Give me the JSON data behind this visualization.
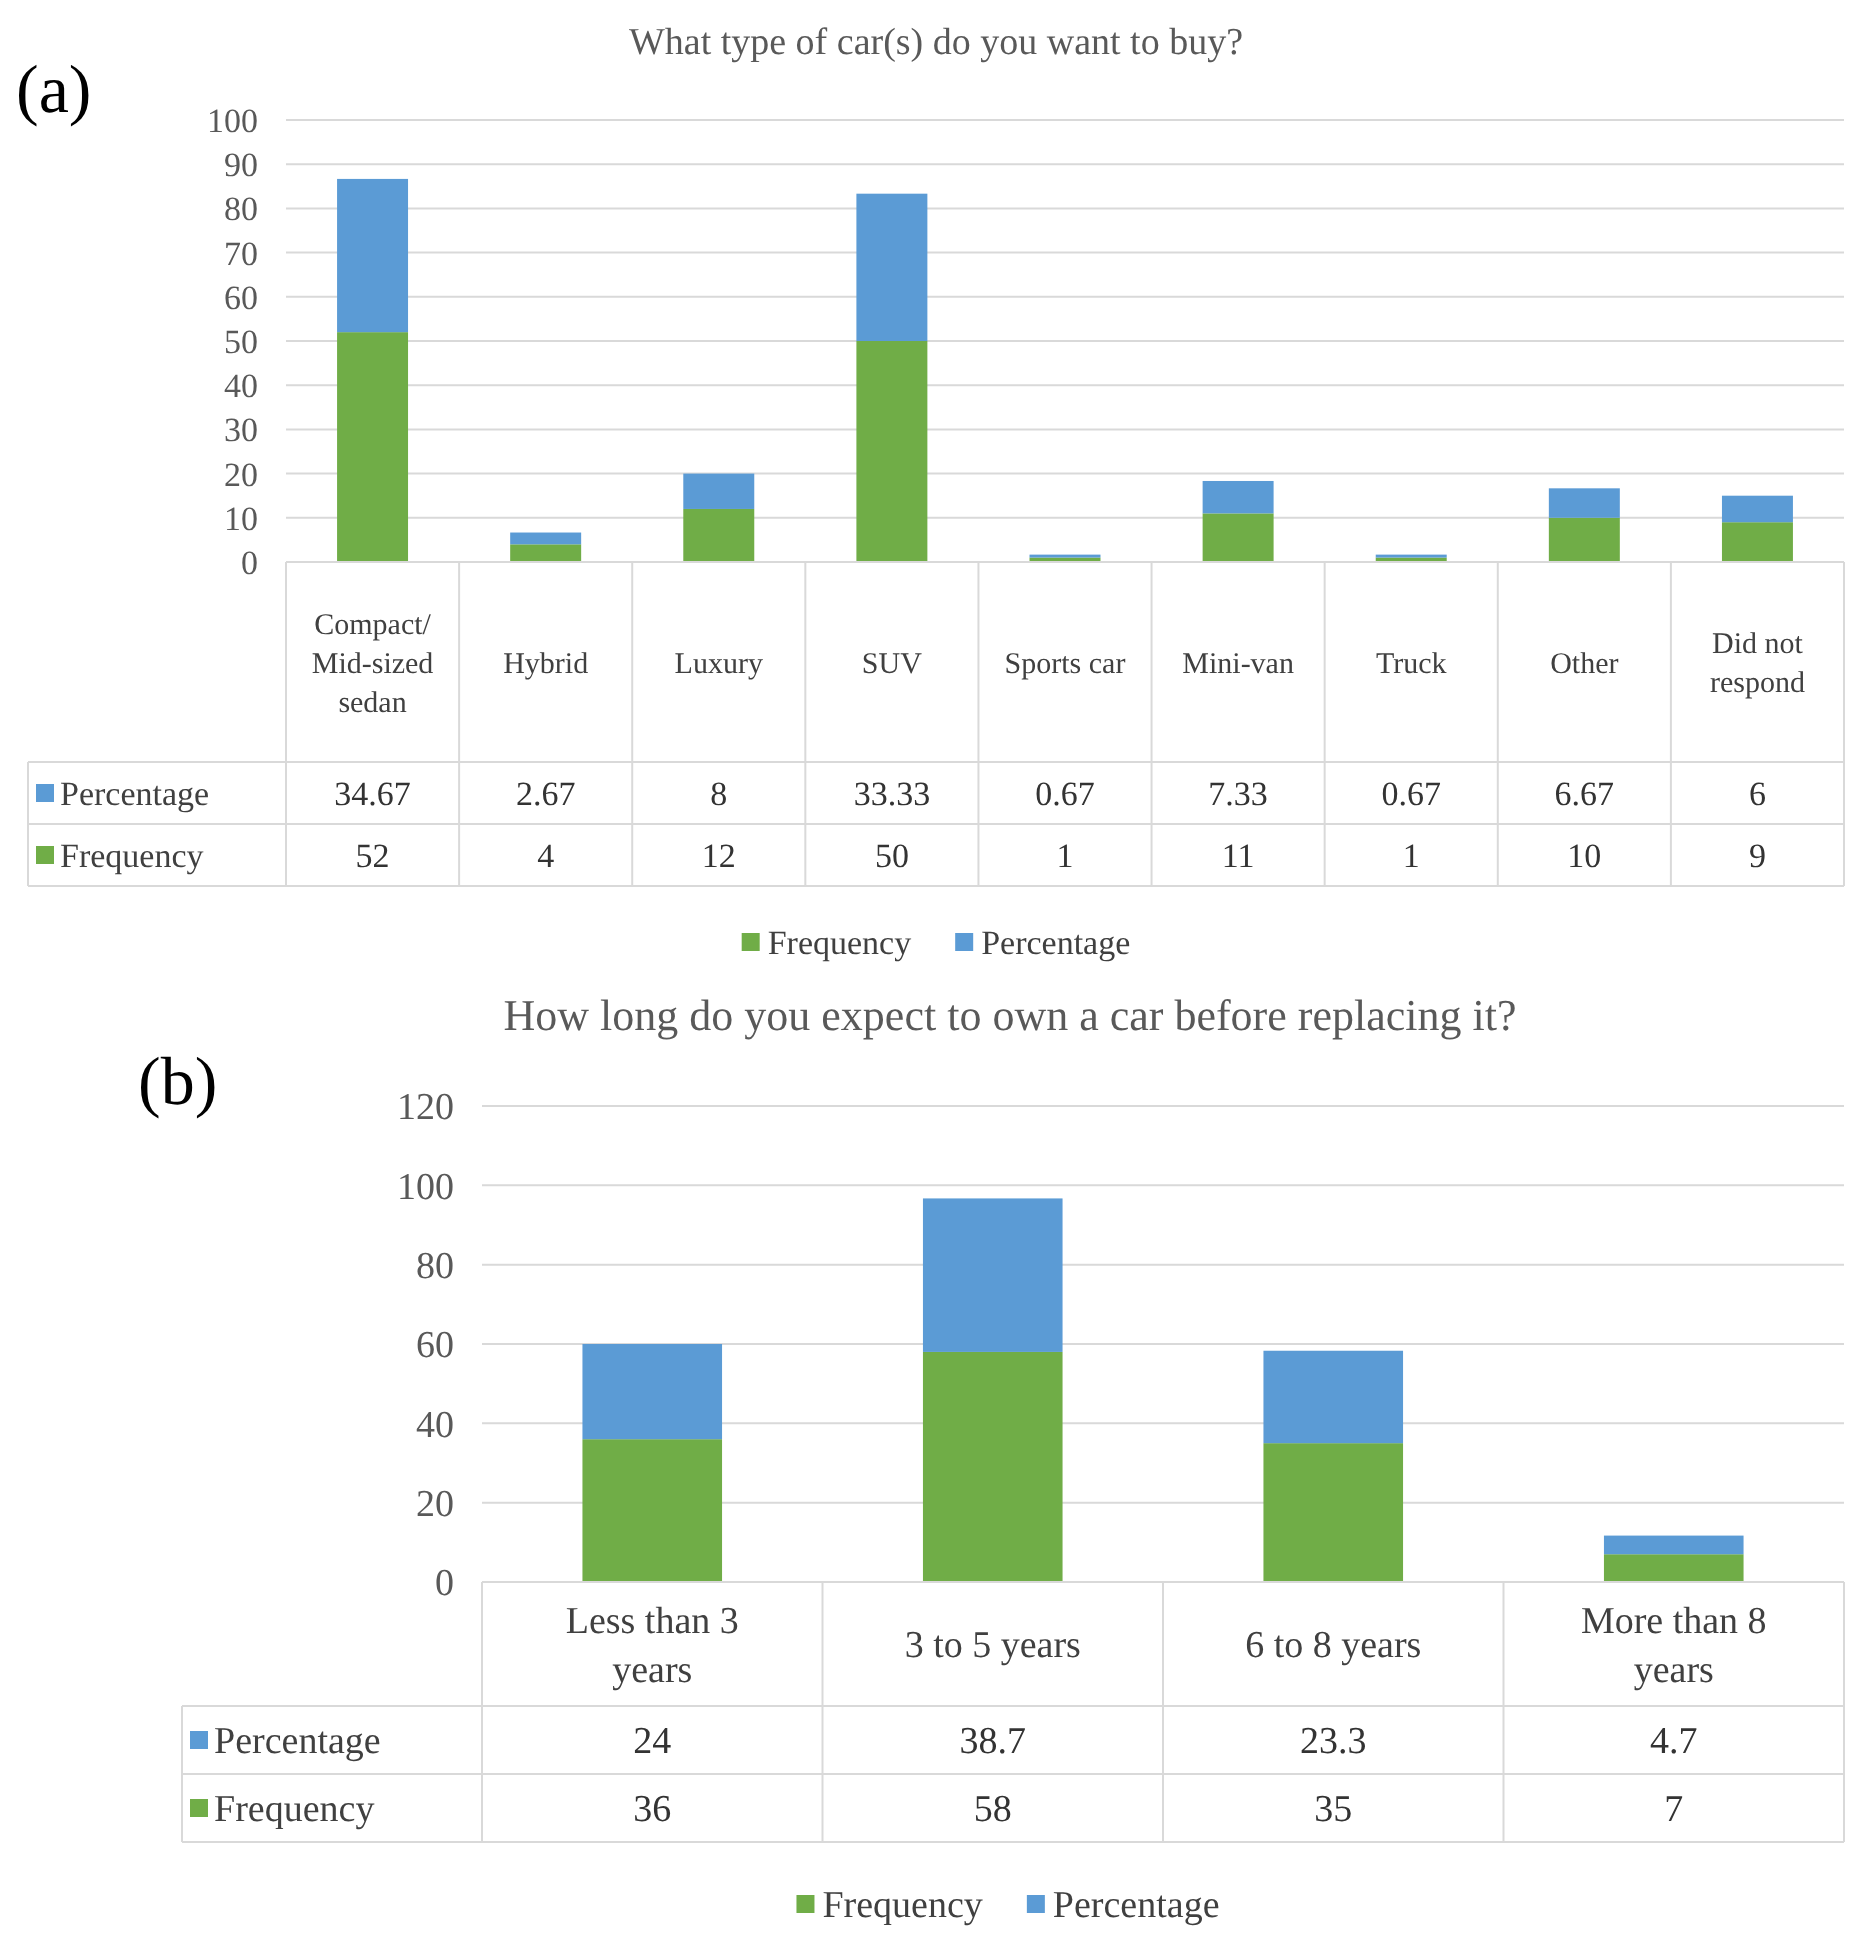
{
  "chart_data": [
    {
      "type": "bar",
      "title": "What type of car(s) do you want to buy?",
      "annotations": [
        "(a)"
      ],
      "categories": [
        "Compact/Mid-sized sedan",
        "Hybrid",
        "Luxury",
        "SUV",
        "Sports car",
        "Mini-van",
        "Truck",
        "Other",
        "Did not respond"
      ],
      "stacked": true,
      "series": [
        {
          "name": "Frequency",
          "color": "#70ad47",
          "values": [
            52,
            4,
            12,
            50,
            1,
            11,
            1,
            10,
            9
          ]
        },
        {
          "name": "Percentage",
          "color": "#5b9bd5",
          "values": [
            34.67,
            2.67,
            8,
            33.33,
            0.67,
            7.33,
            0.67,
            6.67,
            6
          ]
        }
      ],
      "ylim": [
        0,
        100
      ],
      "yticks": [
        0,
        10,
        20,
        30,
        40,
        50,
        60,
        70,
        80,
        90,
        100
      ],
      "grid": "y",
      "legend": "bottom",
      "data_labels": true
    },
    {
      "type": "bar",
      "title": "How long do you expect to own a car before replacing it?",
      "annotations": [
        "(b)"
      ],
      "categories": [
        "Less than 3 years",
        "3 to 5 years",
        "6 to 8 years",
        "More than 8 years"
      ],
      "stacked": true,
      "series": [
        {
          "name": "Frequency",
          "color": "#70ad47",
          "values": [
            36,
            58,
            35,
            7
          ]
        },
        {
          "name": "Percentage",
          "color": "#5b9bd5",
          "values": [
            24,
            38.7,
            23.3,
            4.7
          ]
        }
      ],
      "ylim": [
        0,
        120
      ],
      "yticks": [
        0,
        20,
        40,
        60,
        80,
        100,
        120
      ],
      "grid": "y",
      "legend": "bottom",
      "data_labels": true
    }
  ]
}
